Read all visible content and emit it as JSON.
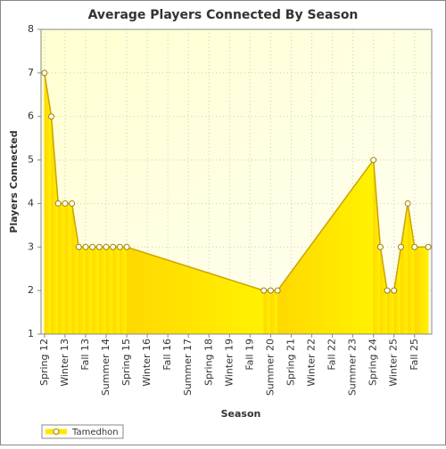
{
  "chart_data": {
    "type": "area",
    "title": "Average Players Connected By Season",
    "x_label": "Season",
    "y_label": "Players Connected",
    "categories": [
      "Spring 12",
      null,
      null,
      "Winter 13",
      null,
      null,
      "Fall 13",
      null,
      null,
      "Summer 14",
      null,
      null,
      "Spring 15",
      null,
      null,
      "Winter 16",
      null,
      null,
      "Fall 16",
      null,
      null,
      "Summer 17",
      null,
      null,
      "Spring 18",
      null,
      null,
      "Winter 19",
      null,
      null,
      "Fall 19",
      null,
      null,
      "Summer 20",
      null,
      null,
      "Spring 21",
      null,
      null,
      "Winter 22",
      null,
      null,
      "Fall 22",
      null,
      null,
      "Summer 23",
      null,
      null,
      "Spring 24",
      null,
      null,
      "Winter 25",
      null,
      null,
      "Fall 25",
      null,
      null
    ],
    "series": [
      {
        "name": "Tamedhon",
        "color": "#ffe800",
        "values": [
          7,
          6,
          4,
          4,
          4,
          3,
          3,
          3,
          3,
          3,
          3,
          3,
          3,
          null,
          null,
          null,
          null,
          null,
          null,
          null,
          null,
          null,
          null,
          null,
          null,
          null,
          null,
          null,
          null,
          null,
          null,
          null,
          2,
          2,
          2,
          null,
          null,
          null,
          null,
          null,
          null,
          null,
          null,
          null,
          null,
          null,
          null,
          null,
          5,
          3,
          2,
          2,
          3,
          4,
          3,
          null,
          3
        ]
      }
    ],
    "ylim": [
      1,
      8
    ],
    "yticks": [
      1,
      2,
      3,
      4,
      5,
      6,
      7,
      8
    ],
    "grid": true,
    "legend": "bottom-left"
  }
}
